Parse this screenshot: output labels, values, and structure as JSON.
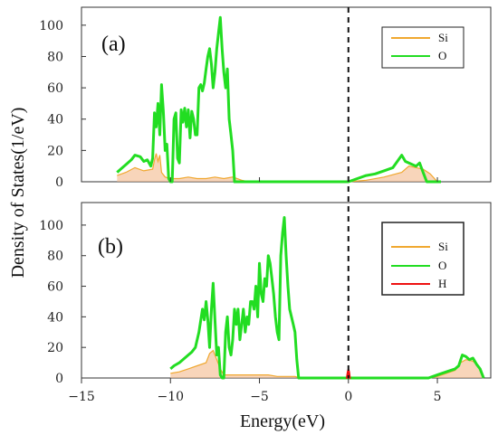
{
  "chart_data": {
    "type": "line",
    "xlabel": "Energy(eV)",
    "ylabel": "Density of States(1/eV)",
    "xlim": [
      -15,
      8
    ],
    "x_ticks": [
      -15,
      -10,
      -5,
      0,
      5
    ],
    "fermi_level": 0,
    "colors": {
      "Si": "#f0a830",
      "O": "#22dd22",
      "H": "#ee1111",
      "Si_fill": "#f4b98c"
    },
    "panels": [
      {
        "label": "(a)",
        "ylim": [
          0,
          108
        ],
        "y_ticks": [
          0,
          20,
          40,
          60,
          80,
          100
        ],
        "legend": [
          "Si",
          "O"
        ],
        "series": [
          {
            "name": "O",
            "color": "#22dd22",
            "x": [
              -13.0,
              -12.8,
              -12.5,
              -12.2,
              -12.0,
              -11.7,
              -11.5,
              -11.3,
              -11.1,
              -11.0,
              -10.9,
              -10.8,
              -10.7,
              -10.6,
              -10.5,
              -10.4,
              -10.3,
              -10.2,
              -10.1,
              -10.0,
              -9.9,
              -9.8,
              -9.7,
              -9.6,
              -9.5,
              -9.4,
              -9.3,
              -9.2,
              -9.1,
              -9.0,
              -8.9,
              -8.8,
              -8.7,
              -8.6,
              -8.5,
              -8.4,
              -8.3,
              -8.2,
              -8.1,
              -8.0,
              -7.9,
              -7.8,
              -7.7,
              -7.6,
              -7.5,
              -7.4,
              -7.3,
              -7.2,
              -7.1,
              -7.0,
              -6.9,
              -6.8,
              -6.7,
              -6.6,
              -6.5,
              -6.4,
              -6.3,
              -6.2,
              -6.1,
              -6.0,
              -5.9,
              -5.8,
              -5.7,
              -5.6,
              0.0,
              0.5,
              1.0,
              1.5,
              2.0,
              2.5,
              3.0,
              3.2,
              3.4,
              3.6,
              3.8,
              4.0,
              4.2,
              4.4,
              4.6,
              4.8,
              5.0,
              5.2
            ],
            "y": [
              6,
              8,
              11,
              14,
              17,
              16,
              13,
              14,
              10,
              15,
              44,
              35,
              50,
              30,
              62,
              45,
              20,
              24,
              2,
              0,
              0,
              40,
              44,
              15,
              12,
              46,
              38,
              47,
              35,
              46,
              28,
              45,
              40,
              30,
              30,
              60,
              62,
              58,
              63,
              72,
              80,
              85,
              75,
              60,
              70,
              85,
              95,
              105,
              85,
              70,
              60,
              72,
              40,
              30,
              20,
              0,
              0,
              0,
              0,
              0,
              0,
              0,
              0,
              0,
              0,
              2,
              4,
              5,
              7,
              9,
              17,
              13,
              12,
              11,
              10,
              12,
              6,
              0,
              0,
              0,
              0,
              0
            ]
          },
          {
            "name": "Si",
            "color": "#f0a830",
            "x": [
              -13.0,
              -12.5,
              -12.0,
              -11.5,
              -11.0,
              -10.9,
              -10.8,
              -10.7,
              -10.6,
              -10.5,
              -10.3,
              -10.0,
              -9.5,
              -9.0,
              -8.5,
              -8.0,
              -7.5,
              -7.0,
              -6.5,
              -6.0,
              -5.6,
              0.0,
              1.0,
              2.0,
              3.0,
              3.4,
              3.8,
              4.2,
              4.6,
              5.0,
              5.2
            ],
            "y": [
              4,
              6,
              9,
              7,
              8,
              14,
              18,
              13,
              17,
              6,
              3,
              2,
              2,
              3,
              2,
              2,
              3,
              2,
              3,
              1,
              0,
              0,
              1,
              3,
              6,
              10,
              9,
              8,
              5,
              0,
              0
            ]
          }
        ]
      },
      {
        "label": "(b)",
        "ylim": [
          0,
          110
        ],
        "y_ticks": [
          0,
          20,
          40,
          60,
          80,
          100
        ],
        "legend": [
          "Si",
          "O",
          "H"
        ],
        "series": [
          {
            "name": "O",
            "color": "#22dd22",
            "x": [
              -10.0,
              -9.8,
              -9.5,
              -9.2,
              -9.0,
              -8.8,
              -8.6,
              -8.4,
              -8.2,
              -8.1,
              -8.0,
              -7.9,
              -7.8,
              -7.7,
              -7.6,
              -7.5,
              -7.4,
              -7.3,
              -7.2,
              -7.1,
              -7.0,
              -6.9,
              -6.8,
              -6.7,
              -6.6,
              -6.5,
              -6.4,
              -6.3,
              -6.2,
              -6.1,
              -6.0,
              -5.9,
              -5.8,
              -5.7,
              -5.6,
              -5.5,
              -5.4,
              -5.3,
              -5.2,
              -5.1,
              -5.0,
              -4.9,
              -4.8,
              -4.7,
              -4.6,
              -4.5,
              -4.4,
              -4.3,
              -4.2,
              -4.1,
              -4.0,
              -3.9,
              -3.8,
              -3.7,
              -3.6,
              -3.5,
              -3.4,
              -3.3,
              -3.2,
              -3.1,
              -3.0,
              -2.9,
              -2.8,
              -2.7,
              4.5,
              5.0,
              5.5,
              6.0,
              6.2,
              6.4,
              6.6,
              6.8,
              7.0,
              7.2,
              7.4,
              7.6
            ],
            "y": [
              6,
              8,
              10,
              13,
              15,
              17,
              20,
              30,
              45,
              38,
              50,
              38,
              20,
              45,
              62,
              38,
              15,
              20,
              2,
              0,
              0,
              30,
              40,
              20,
              15,
              25,
              45,
              35,
              45,
              25,
              35,
              45,
              30,
              40,
              35,
              50,
              50,
              45,
              60,
              40,
              75,
              55,
              50,
              65,
              60,
              80,
              75,
              65,
              55,
              40,
              30,
              25,
              80,
              95,
              105,
              80,
              60,
              45,
              40,
              35,
              30,
              12,
              0,
              0,
              0,
              2,
              4,
              6,
              8,
              15,
              14,
              12,
              13,
              9,
              6,
              0
            ]
          },
          {
            "name": "Si",
            "color": "#f0a830",
            "x": [
              -10.0,
              -9.5,
              -9.0,
              -8.5,
              -8.0,
              -7.8,
              -7.6,
              -7.4,
              -7.2,
              -7.0,
              -6.8,
              -6.5,
              -6.0,
              -5.5,
              -5.0,
              -4.5,
              -4.0,
              -3.5,
              -3.0,
              -2.7,
              4.5,
              5.0,
              5.5,
              6.0,
              6.3,
              6.6,
              7.0,
              7.3,
              7.6
            ],
            "y": [
              3,
              4,
              6,
              8,
              10,
              16,
              18,
              12,
              6,
              2,
              2,
              2,
              2,
              2,
              2,
              2,
              1,
              1,
              1,
              0,
              0,
              1,
              3,
              5,
              10,
              12,
              11,
              8,
              0
            ]
          },
          {
            "name": "H",
            "color": "#ee1111",
            "x": [
              -0.1,
              -0.05,
              0.0,
              0.05,
              0.1
            ],
            "y": [
              0,
              4,
              6,
              4,
              0
            ]
          }
        ]
      }
    ]
  }
}
